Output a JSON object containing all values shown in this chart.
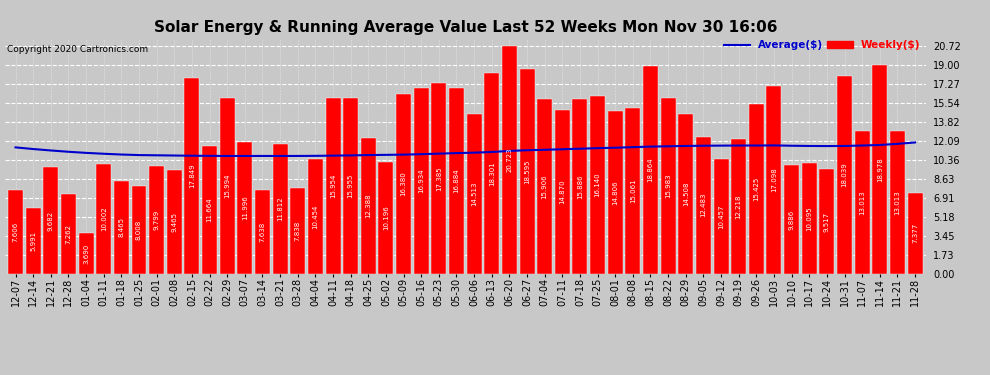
{
  "title": "Solar Energy & Running Average Value Last 52 Weeks Mon Nov 30 16:06",
  "copyright": "Copyright 2020 Cartronics.com",
  "bar_color": "#ff0000",
  "avg_line_color": "#0000cc",
  "background_color": "#c8c8c8",
  "plot_bg_color": "#c8c8c8",
  "legend_avg": "Average($)",
  "legend_weekly": "Weekly($)",
  "categories": [
    "12-07",
    "12-14",
    "12-21",
    "12-28",
    "01-04",
    "01-11",
    "01-18",
    "01-25",
    "02-01",
    "02-08",
    "02-15",
    "02-22",
    "02-29",
    "03-07",
    "03-14",
    "03-21",
    "03-28",
    "04-04",
    "04-11",
    "04-18",
    "04-25",
    "05-02",
    "05-09",
    "05-16",
    "05-23",
    "05-30",
    "06-06",
    "06-13",
    "06-20",
    "06-27",
    "07-04",
    "07-11",
    "07-18",
    "07-25",
    "08-01",
    "08-08",
    "08-15",
    "08-22",
    "08-29",
    "09-05",
    "09-12",
    "09-19",
    "09-26",
    "10-03",
    "10-10",
    "10-17",
    "10-24",
    "10-31",
    "11-07",
    "11-14",
    "11-21",
    "11-28"
  ],
  "weekly_values": [
    7.606,
    5.991,
    9.682,
    7.262,
    3.69,
    10.002,
    8.465,
    8.008,
    9.799,
    9.465,
    17.849,
    11.664,
    15.994,
    11.996,
    7.638,
    11.812,
    7.838,
    10.454,
    15.954,
    15.955,
    12.388,
    10.196,
    16.38,
    16.934,
    17.385,
    16.884,
    14.513,
    18.301,
    20.723,
    18.595,
    15.906,
    14.87,
    15.886,
    16.14,
    14.806,
    15.061,
    18.864,
    15.983,
    14.508,
    12.483,
    10.457,
    12.218,
    15.425,
    17.098,
    9.886,
    10.095,
    9.517,
    18.039,
    13.013,
    18.978,
    13.013,
    7.377
  ],
  "avg_values": [
    11.5,
    11.35,
    11.22,
    11.1,
    11.0,
    10.92,
    10.85,
    10.8,
    10.78,
    10.76,
    10.74,
    10.73,
    10.72,
    10.72,
    10.72,
    10.72,
    10.72,
    10.73,
    10.75,
    10.77,
    10.8,
    10.82,
    10.84,
    10.88,
    10.93,
    10.98,
    11.02,
    11.08,
    11.18,
    11.24,
    11.28,
    11.33,
    11.38,
    11.43,
    11.47,
    11.52,
    11.57,
    11.6,
    11.63,
    11.65,
    11.66,
    11.67,
    11.67,
    11.68,
    11.65,
    11.63,
    11.62,
    11.63,
    11.67,
    11.72,
    11.82,
    11.95
  ],
  "yticks": [
    0.0,
    1.73,
    3.45,
    5.18,
    6.91,
    8.63,
    10.36,
    12.09,
    13.82,
    15.54,
    17.27,
    19.0,
    20.72
  ],
  "ylim": [
    0,
    21.5
  ],
  "title_fontsize": 11,
  "label_fontsize": 5.0,
  "tick_fontsize": 7,
  "copyright_fontsize": 6.5
}
